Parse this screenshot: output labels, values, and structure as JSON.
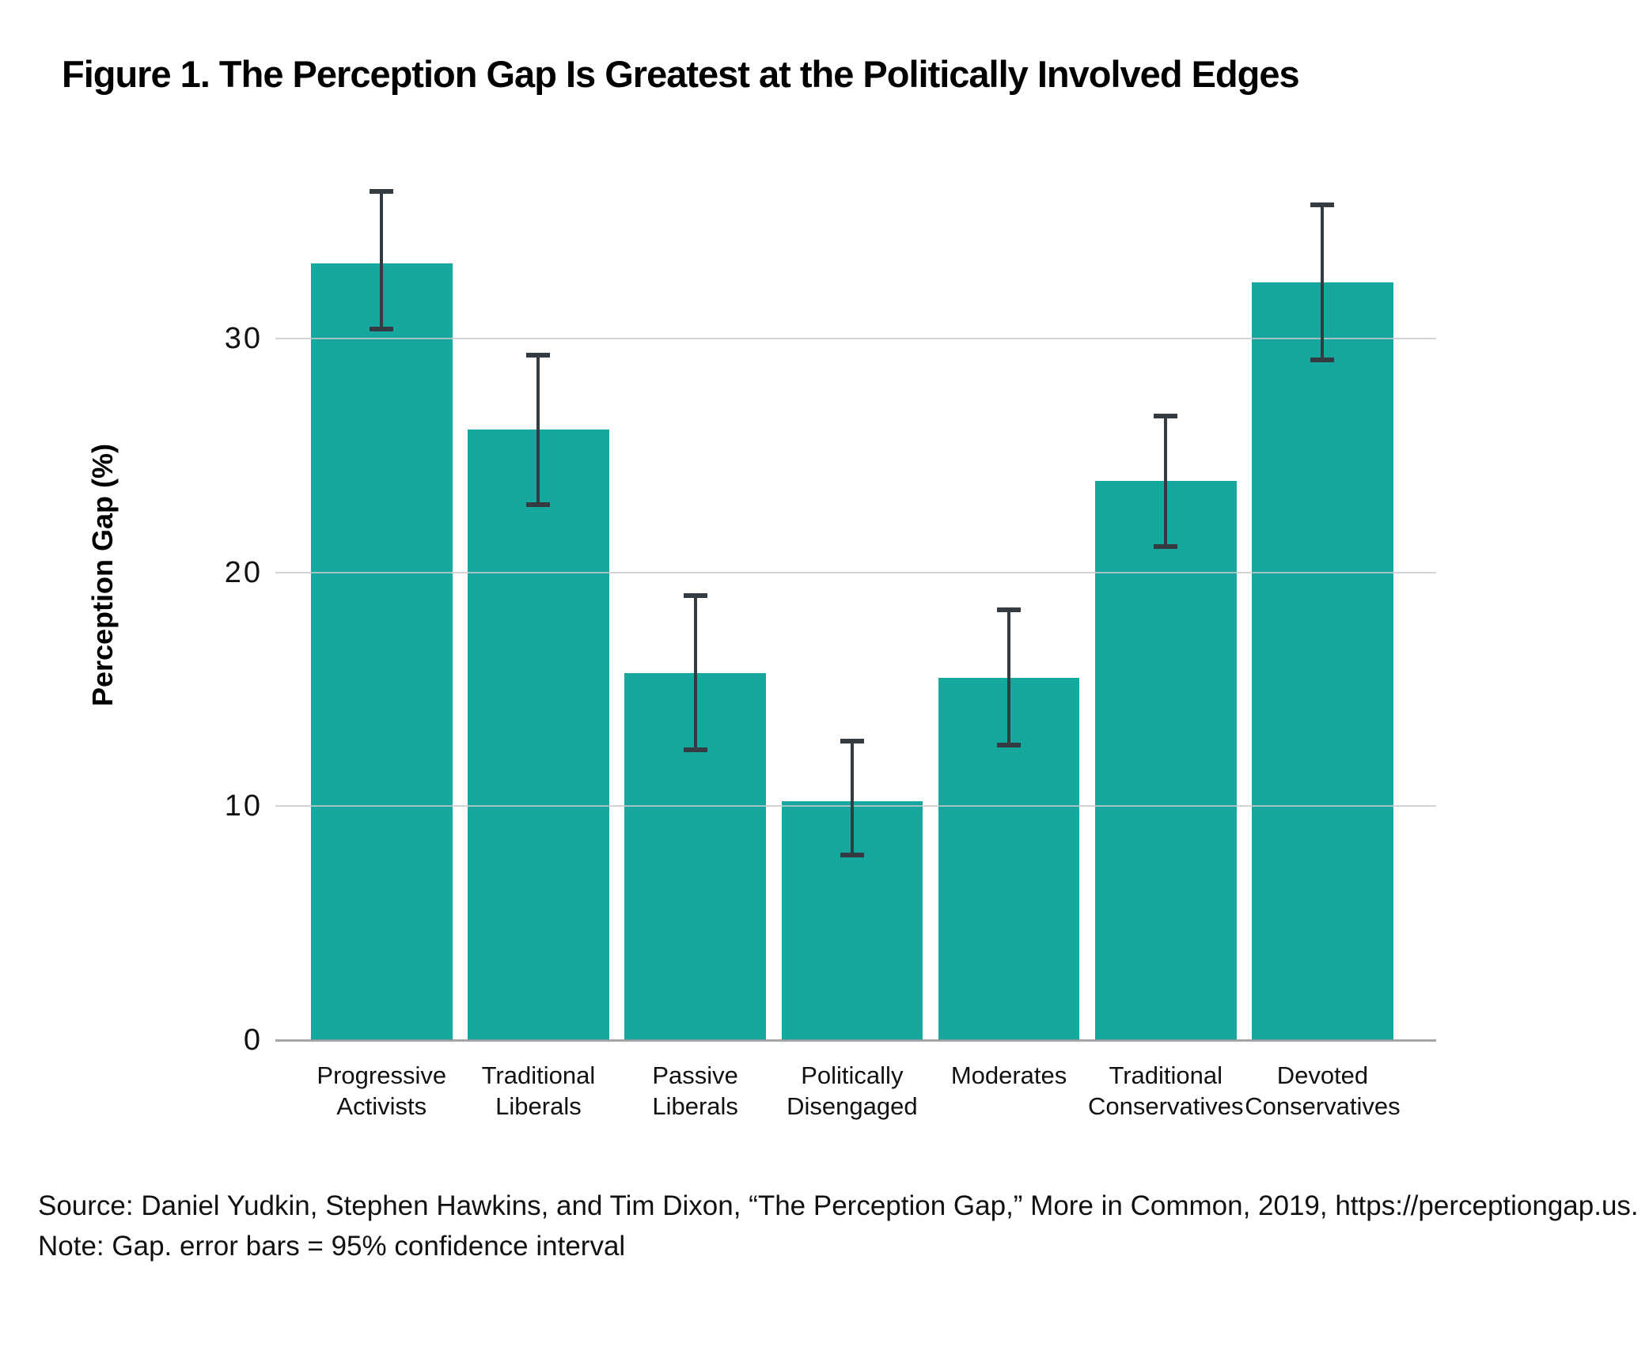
{
  "title": "Figure 1. The Perception Gap Is Greatest at the Politically Involved Edges",
  "chart_data": {
    "type": "bar",
    "title": "Figure 1. The Perception Gap Is Greatest at the Politically Involved Edges",
    "xlabel": "",
    "ylabel": "Perception Gap (%)",
    "categories": [
      "Progressive Activists",
      "Traditional Liberals",
      "Passive Liberals",
      "Politically Disengaged",
      "Moderates",
      "Traditional Conservatives",
      "Devoted Conservatives"
    ],
    "values": [
      33.2,
      26.1,
      15.7,
      10.2,
      15.5,
      23.9,
      32.4
    ],
    "error_low": [
      30.4,
      22.9,
      12.4,
      7.9,
      12.6,
      21.1,
      29.1
    ],
    "error_high": [
      36.3,
      29.3,
      19.0,
      12.8,
      18.4,
      26.7,
      35.7
    ],
    "error_bars_meaning": "95% confidence interval",
    "yticks": [
      0,
      10,
      20,
      30
    ],
    "ylim": [
      0,
      38
    ],
    "grid": "horizontal-only",
    "legend": "none",
    "bar_color": "#16a79e",
    "error_bar_color": "#343b41",
    "gridline_color": "#c9c9c9"
  },
  "footer": {
    "source": "Source: Daniel Yudkin, Stephen Hawkins, and Tim Dixon, “The Perception Gap,” More in Common, 2019, https://perceptiongap.us.",
    "note": "Note: Gap. error bars = 95% confidence interval"
  }
}
